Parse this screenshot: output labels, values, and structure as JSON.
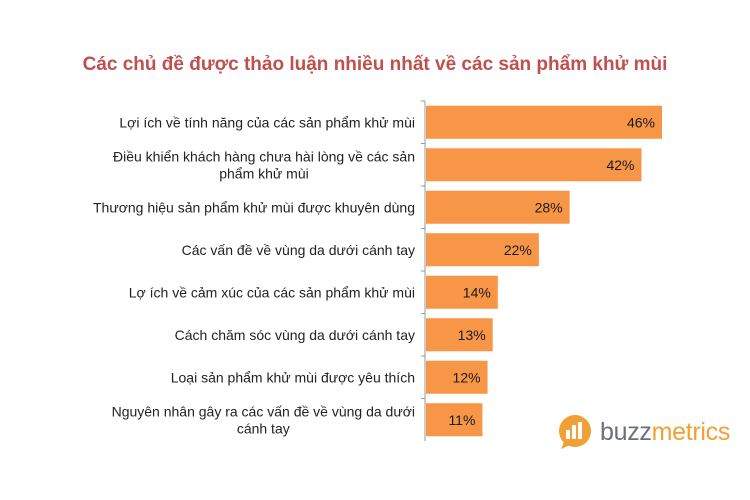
{
  "chart_data": {
    "type": "bar",
    "orientation": "horizontal",
    "title": "Các chủ đề được thảo luận nhiều nhất về các sản phẩm khử mùi",
    "categories": [
      "Lợi ích về tính năng của các sản phẩm khử mùi",
      "Điều khiển khách hàng chưa hài lòng về các sản phẩm khử mùi",
      "Thương hiệu sản phẩm khử mùi được khuyên dùng",
      "Các vấn đề về vùng da dưới cánh tay",
      "Lợ ích về cảm xúc của các sản phẩm khử mùi",
      "Cách chăm sóc vùng da dưới cánh tay",
      "Loại sản phẩm khử mùi được yêu thích",
      "Nguyên nhân gây ra các vấn đề về vùng da dưới cánh tay"
    ],
    "category_lines": [
      [
        "Lợi ích về tính năng của các sản phẩm khử mùi"
      ],
      [
        "Điều khiển khách hàng chưa hài lòng về các sản",
        "phẩm khử mùi"
      ],
      [
        "Thương hiệu sản phẩm khử mùi được khuyên dùng"
      ],
      [
        "Các vấn đề về vùng da dưới cánh tay"
      ],
      [
        "Lợ ích về cảm xúc của các sản phẩm khử mùi"
      ],
      [
        "Cách chăm sóc vùng da dưới cánh tay"
      ],
      [
        "Loại sản phẩm khử mùi được yêu thích"
      ],
      [
        "Nguyên nhân gây ra các vấn đề về vùng da dưới",
        "cánh tay"
      ]
    ],
    "values": [
      46,
      42,
      28,
      22,
      14,
      13,
      12,
      11
    ],
    "value_labels": [
      "46%",
      "42%",
      "28%",
      "22%",
      "14%",
      "13%",
      "12%",
      "11%"
    ],
    "xlim": [
      0,
      50
    ],
    "grid": false,
    "bar_color": "#f79646",
    "axis_color": "#9a9a9a"
  },
  "logo": {
    "text_main": "buzz",
    "text_accent": "metrics",
    "icon": "bar-chart-speech-bubble-icon",
    "icon_color": "#f0a035"
  }
}
